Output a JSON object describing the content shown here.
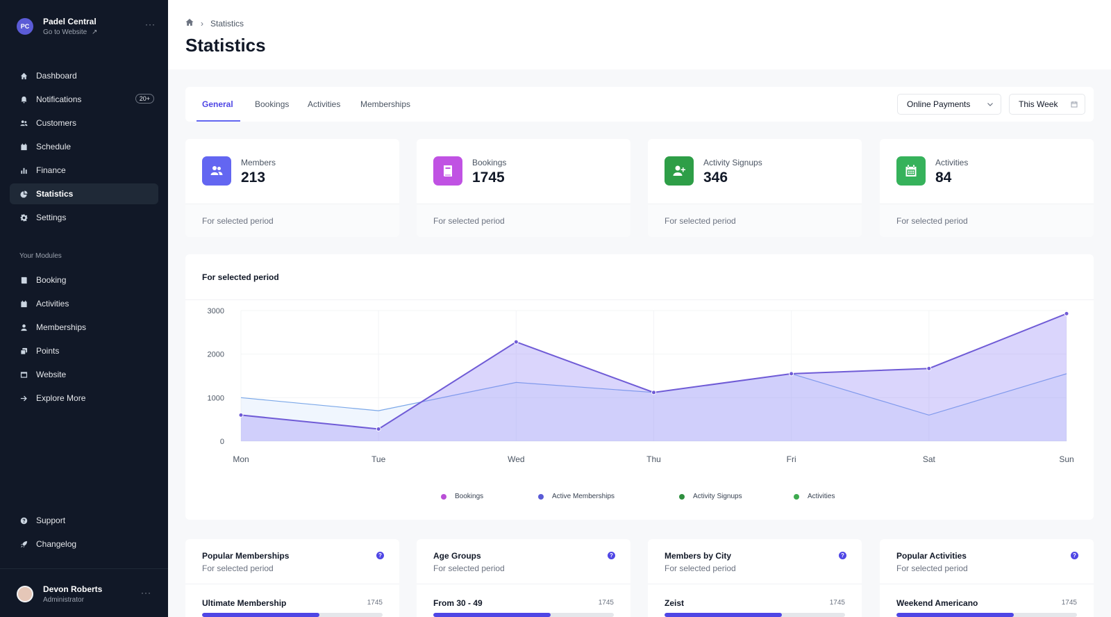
{
  "org": {
    "initials": "PC",
    "name": "Padel Central",
    "link_label": "Go to Website"
  },
  "nav": [
    {
      "label": "Dashboard",
      "icon": "home-icon"
    },
    {
      "label": "Notifications",
      "icon": "bell-icon",
      "badge": "20+"
    },
    {
      "label": "Customers",
      "icon": "users-icon"
    },
    {
      "label": "Schedule",
      "icon": "calendar-icon"
    },
    {
      "label": "Finance",
      "icon": "bar-chart-icon"
    },
    {
      "label": "Statistics",
      "icon": "pie-chart-icon",
      "active": true
    },
    {
      "label": "Settings",
      "icon": "gear-icon"
    }
  ],
  "modules_title": "Your Modules",
  "modules": [
    {
      "label": "Booking",
      "icon": "book-icon"
    },
    {
      "label": "Activities",
      "icon": "calendar-icon"
    },
    {
      "label": "Memberships",
      "icon": "user-icon"
    },
    {
      "label": "Points",
      "icon": "stack-icon"
    },
    {
      "label": "Website",
      "icon": "browser-icon"
    },
    {
      "label": "Explore More",
      "icon": "arrow-right-icon"
    }
  ],
  "footer_nav": [
    {
      "label": "Support",
      "icon": "help-circle-icon"
    },
    {
      "label": "Changelog",
      "icon": "rocket-icon"
    }
  ],
  "user": {
    "name": "Devon Roberts",
    "role": "Administrator"
  },
  "header": {
    "breadcrumb": "Statistics",
    "title": "Statistics"
  },
  "tabs": [
    "General",
    "Bookings",
    "Activities",
    "Memberships"
  ],
  "active_tab": "General",
  "filters": {
    "payment": "Online Payments",
    "period": "This Week"
  },
  "stats": [
    {
      "label": "Members",
      "value": "213",
      "footer": "For selected period",
      "color": "#6366f1",
      "icon": "users-icon"
    },
    {
      "label": "Bookings",
      "value": "1745",
      "footer": "For selected period",
      "color": "#c052e3",
      "icon": "book-icon"
    },
    {
      "label": "Activity Signups",
      "value": "346",
      "footer": "For selected period",
      "color": "#2e9e47",
      "icon": "user-plus-icon"
    },
    {
      "label": "Activities",
      "value": "84",
      "footer": "For selected period",
      "color": "#36b25b",
      "icon": "calendar-icon"
    }
  ],
  "chart_title": "For selected period",
  "chart_data": {
    "type": "area",
    "categories": [
      "Mon",
      "Tue",
      "Wed",
      "Thu",
      "Fri",
      "Sat",
      "Sun"
    ],
    "ylim": [
      0,
      3000
    ],
    "yticks": [
      0,
      1000,
      2000,
      3000
    ],
    "series": [
      {
        "values": [
          1000,
          700,
          1350,
          1120,
          1550,
          600,
          1550
        ],
        "color": "#7aa7e8"
      },
      {
        "values": [
          600,
          280,
          2280,
          1120,
          1550,
          1670,
          2930
        ],
        "color": "#6f5bd6"
      }
    ],
    "legend": [
      {
        "name": "Bookings",
        "color": "#b94fd6"
      },
      {
        "name": "Active Memberships",
        "color": "#5a5bd6"
      },
      {
        "name": "Activity Signups",
        "color": "#2e8f3e"
      },
      {
        "name": "Activities",
        "color": "#3daa4f"
      }
    ]
  },
  "panels": [
    {
      "title": "Popular Memberships",
      "subtitle": "For selected period",
      "row_label": "Ultimate Membership",
      "row_value": "1745",
      "fill": 0.65
    },
    {
      "title": "Age Groups",
      "subtitle": "For selected period",
      "row_label": "From 30 - 49",
      "row_value": "1745",
      "fill": 0.65
    },
    {
      "title": "Members by City",
      "subtitle": "For selected period",
      "row_label": "Zeist",
      "row_value": "1745",
      "fill": 0.65
    },
    {
      "title": "Popular Activities",
      "subtitle": "For selected period",
      "row_label": "Weekend Americano",
      "row_value": "1745",
      "fill": 0.65
    }
  ]
}
